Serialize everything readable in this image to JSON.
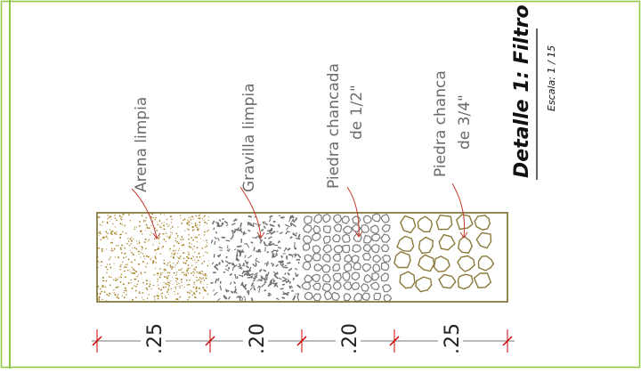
{
  "title": {
    "main": "Detalle 1: Filtro",
    "scale": "Escala: 1 / 15"
  },
  "layers": [
    {
      "label_lines": [
        "Arena limpia"
      ],
      "thickness": ".25",
      "material": "sand"
    },
    {
      "label_lines": [
        "Gravilla limpia"
      ],
      "thickness": ".20",
      "material": "gravel-chips"
    },
    {
      "label_lines": [
        "Piedra chancada",
        "de 1/2\""
      ],
      "thickness": ".20",
      "material": "crushed-stone-half-inch"
    },
    {
      "label_lines": [
        "Piedra chanca",
        "de 3/4\""
      ],
      "thickness": ".25",
      "material": "crushed-stone-three-quarter-inch"
    }
  ],
  "colors": {
    "frame": "#8dc63f",
    "outline": "#7a6a2a",
    "sand": "#a8862a",
    "gravel": "#6f6f6f",
    "stone_small": "#7b7b7b",
    "stone_large": "#8a7a3a",
    "leader": "#c0392b",
    "dimension_tick": "#cc0000",
    "text": "#6b6b6b",
    "title_text": "#111111"
  }
}
